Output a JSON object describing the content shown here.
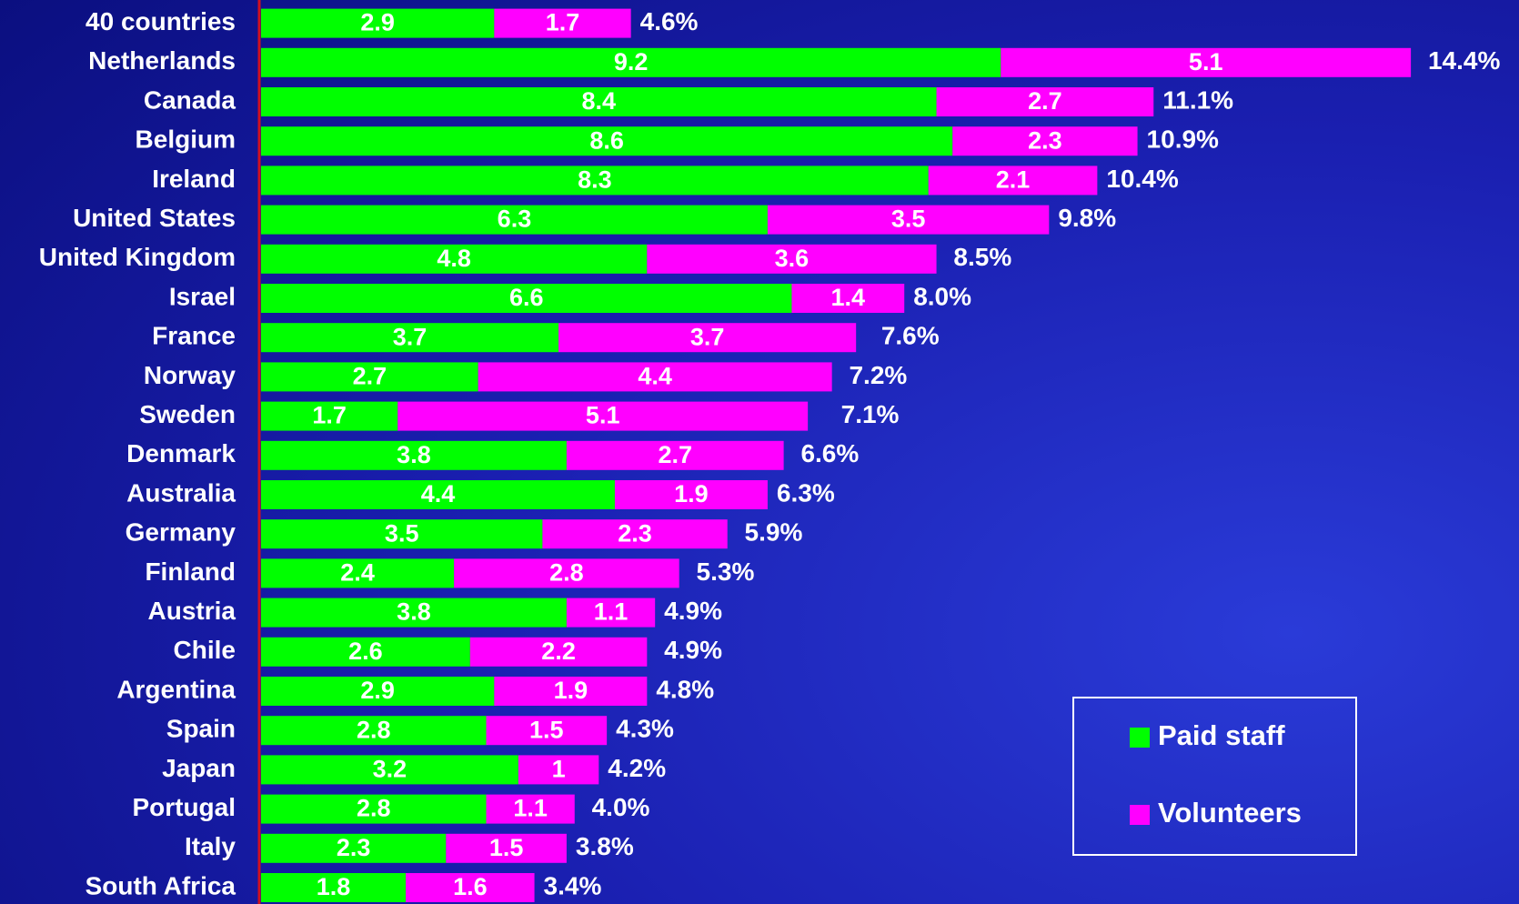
{
  "chart_data": {
    "type": "stacked-bar-horizontal",
    "categories": [
      "40 countries",
      "Netherlands",
      "Canada",
      "Belgium",
      "Ireland",
      "United States",
      "United Kingdom",
      "Israel",
      "France",
      "Norway",
      "Sweden",
      "Denmark",
      "Australia",
      "Germany",
      "Finland",
      "Austria",
      "Chile",
      "Argentina",
      "Spain",
      "Japan",
      "Portugal",
      "Italy",
      "South Africa"
    ],
    "series": [
      {
        "name": "Paid staff",
        "color": "#00ff00",
        "values": [
          2.9,
          9.2,
          8.4,
          8.6,
          8.3,
          6.3,
          4.8,
          6.6,
          3.7,
          2.7,
          1.7,
          3.8,
          4.4,
          3.5,
          2.4,
          3.8,
          2.6,
          2.9,
          2.8,
          3.2,
          2.8,
          2.3,
          1.8
        ]
      },
      {
        "name": "Volunteers",
        "color": "#ff00ff",
        "values": [
          1.7,
          5.1,
          2.7,
          2.3,
          2.1,
          3.5,
          3.6,
          1.4,
          3.7,
          4.4,
          5.1,
          2.7,
          1.9,
          2.3,
          2.8,
          1.1,
          2.2,
          1.9,
          1.5,
          1.0,
          1.1,
          1.5,
          1.6
        ]
      }
    ],
    "totals": {
      "values": [
        4.6,
        14.4,
        11.1,
        10.9,
        10.4,
        9.8,
        8.5,
        8.0,
        7.6,
        7.2,
        7.1,
        6.6,
        6.3,
        5.9,
        5.3,
        4.9,
        4.9,
        4.8,
        4.3,
        4.2,
        4.0,
        3.8,
        3.4
      ],
      "value_labels": [
        "4.6%",
        "14.4%",
        "11.1%",
        "10.9%",
        "10.4%",
        "9.8%",
        "8.5%",
        "8.0%",
        "7.6%",
        "7.2%",
        "7.1%",
        "6.6%",
        "6.3%",
        "5.9%",
        "5.3%",
        "4.9%",
        "4.9%",
        "4.8%",
        "4.3%",
        "4.2%",
        "4.0%",
        "3.8%",
        "3.4%"
      ]
    },
    "legend": "lower-right"
  }
}
